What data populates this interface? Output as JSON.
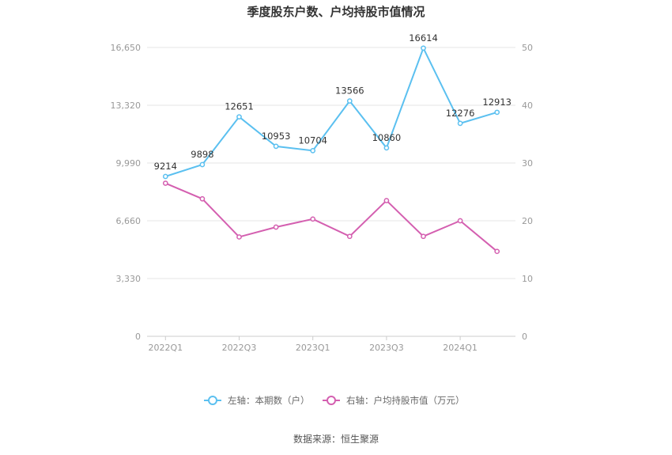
{
  "chart_data": {
    "type": "line",
    "title": "季度股东户数、户均持股市值情况",
    "categories": [
      "2022Q1",
      "2022Q2",
      "2022Q3",
      "2022Q4",
      "2023Q1",
      "2023Q2",
      "2023Q3",
      "2023Q4",
      "2024Q1",
      "2024Q2"
    ],
    "x_tick_labels": [
      "2022Q1",
      "2022Q3",
      "2023Q1",
      "2023Q3",
      "2024Q1"
    ],
    "left_axis": {
      "ylim": [
        0,
        16650
      ],
      "ticks": [
        "0",
        "3,330",
        "6,660",
        "9,990",
        "13,320",
        "16,650"
      ]
    },
    "right_axis": {
      "ylim": [
        0,
        50
      ],
      "ticks": [
        "0",
        "10",
        "20",
        "30",
        "40",
        "50"
      ]
    },
    "series": [
      {
        "name": "左轴：本期数（户）",
        "axis": "left",
        "color": "#5bc0f0",
        "values": [
          9214,
          9898,
          12651,
          10953,
          10704,
          13566,
          10860,
          16614,
          12276,
          12913
        ],
        "show_labels": true
      },
      {
        "name": "右轴：户均持股市值（万元）",
        "axis": "right",
        "color": "#d45fb0",
        "values": [
          26.5,
          23.8,
          17.2,
          18.9,
          20.3,
          17.3,
          23.5,
          17.3,
          20.0,
          14.7
        ],
        "show_labels": false
      }
    ],
    "grid": true,
    "legend_position": "bottom"
  },
  "source_text": "数据来源：恒生聚源"
}
